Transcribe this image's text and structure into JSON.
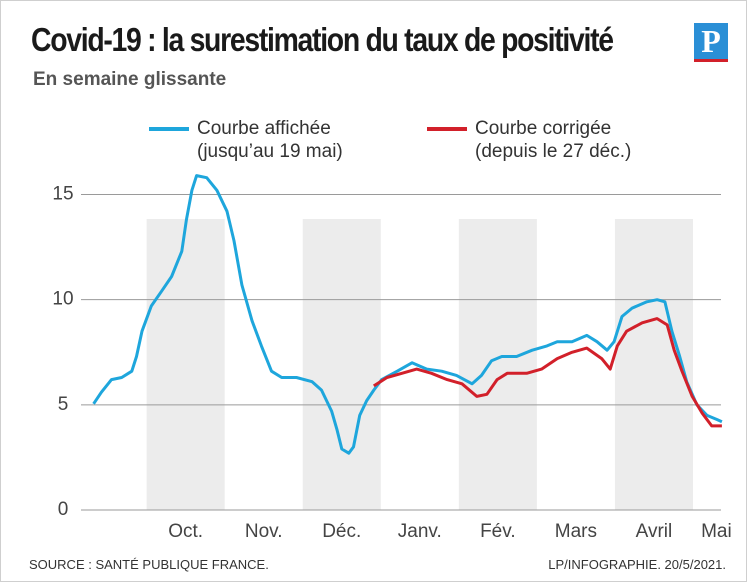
{
  "title": "Covid-19 : la surestimation du taux de positivité",
  "logo": "P",
  "chart_data": {
    "type": "line",
    "subtitle": "En semaine glissante",
    "source": "SOURCE : SANTÉ PUBLIQUE FRANCE.",
    "credit": "LP/INFOGRAPHIE. 20/5/2021.",
    "xlim": [
      -0.7,
      7.5
    ],
    "xticks": [
      {
        "value": 0.5,
        "label": "Oct."
      },
      {
        "value": 1.5,
        "label": "Nov."
      },
      {
        "value": 2.5,
        "label": "Déc."
      },
      {
        "value": 3.5,
        "label": "Janv."
      },
      {
        "value": 4.5,
        "label": "Fév."
      },
      {
        "value": 5.5,
        "label": "Mars"
      },
      {
        "value": 6.5,
        "label": "Avril"
      },
      {
        "value": 7.3,
        "label": "Mai"
      }
    ],
    "ylim": [
      0,
      15.5
    ],
    "yticks": [
      0,
      5,
      10,
      15
    ],
    "grid": true,
    "series": [
      {
        "name": "Courbe affichée\n(jusqu’au 19 mai)",
        "color": "#1ea6dc",
        "x": [
          -0.68,
          -0.58,
          -0.45,
          -0.32,
          -0.19,
          -0.13,
          -0.06,
          0.06,
          0.19,
          0.32,
          0.45,
          0.51,
          0.58,
          0.64,
          0.77,
          0.9,
          1.03,
          1.12,
          1.22,
          1.35,
          1.47,
          1.6,
          1.73,
          1.92,
          2.12,
          2.24,
          2.37,
          2.44,
          2.5,
          2.59,
          2.65,
          2.73,
          2.82,
          2.91,
          3.01,
          3.21,
          3.4,
          3.59,
          3.78,
          3.97,
          4.17,
          4.29,
          4.42,
          4.55,
          4.74,
          4.94,
          5.13,
          5.26,
          5.45,
          5.64,
          5.77,
          5.9,
          5.99,
          6.09,
          6.22,
          6.41,
          6.54,
          6.64,
          6.73,
          6.83,
          6.92,
          7.05,
          7.18,
          7.31,
          7.37
        ],
        "values": [
          5.05,
          5.6,
          6.2,
          6.3,
          6.6,
          7.3,
          8.5,
          9.7,
          10.4,
          11.1,
          12.3,
          13.8,
          15.2,
          15.9,
          15.8,
          15.2,
          14.2,
          12.8,
          10.7,
          9.0,
          7.8,
          6.6,
          6.3,
          6.3,
          6.1,
          5.7,
          4.7,
          3.8,
          2.9,
          2.7,
          3.0,
          4.5,
          5.2,
          5.7,
          6.2,
          6.6,
          7.0,
          6.7,
          6.6,
          6.4,
          6.0,
          6.4,
          7.1,
          7.3,
          7.3,
          7.6,
          7.8,
          8.0,
          8.0,
          8.3,
          8.0,
          7.6,
          8.0,
          9.2,
          9.6,
          9.9,
          10.0,
          9.9,
          8.5,
          7.3,
          6.1,
          5.0,
          4.5,
          4.3,
          4.2
        ]
      },
      {
        "name": "Courbe corrigée\n(depuis le 27 déc.)",
        "color": "#d2202a",
        "x": [
          2.91,
          3.08,
          3.27,
          3.46,
          3.65,
          3.85,
          4.04,
          4.23,
          4.36,
          4.49,
          4.62,
          4.87,
          5.06,
          5.26,
          5.45,
          5.64,
          5.83,
          5.94,
          6.03,
          6.15,
          6.35,
          6.54,
          6.67,
          6.76,
          6.86,
          6.99,
          7.12,
          7.24,
          7.37
        ],
        "values": [
          5.9,
          6.3,
          6.5,
          6.7,
          6.5,
          6.2,
          6.0,
          5.4,
          5.5,
          6.2,
          6.5,
          6.5,
          6.7,
          7.2,
          7.5,
          7.7,
          7.2,
          6.7,
          7.8,
          8.5,
          8.9,
          9.1,
          8.8,
          7.6,
          6.6,
          5.4,
          4.6,
          4.0,
          4.0
        ]
      }
    ]
  }
}
